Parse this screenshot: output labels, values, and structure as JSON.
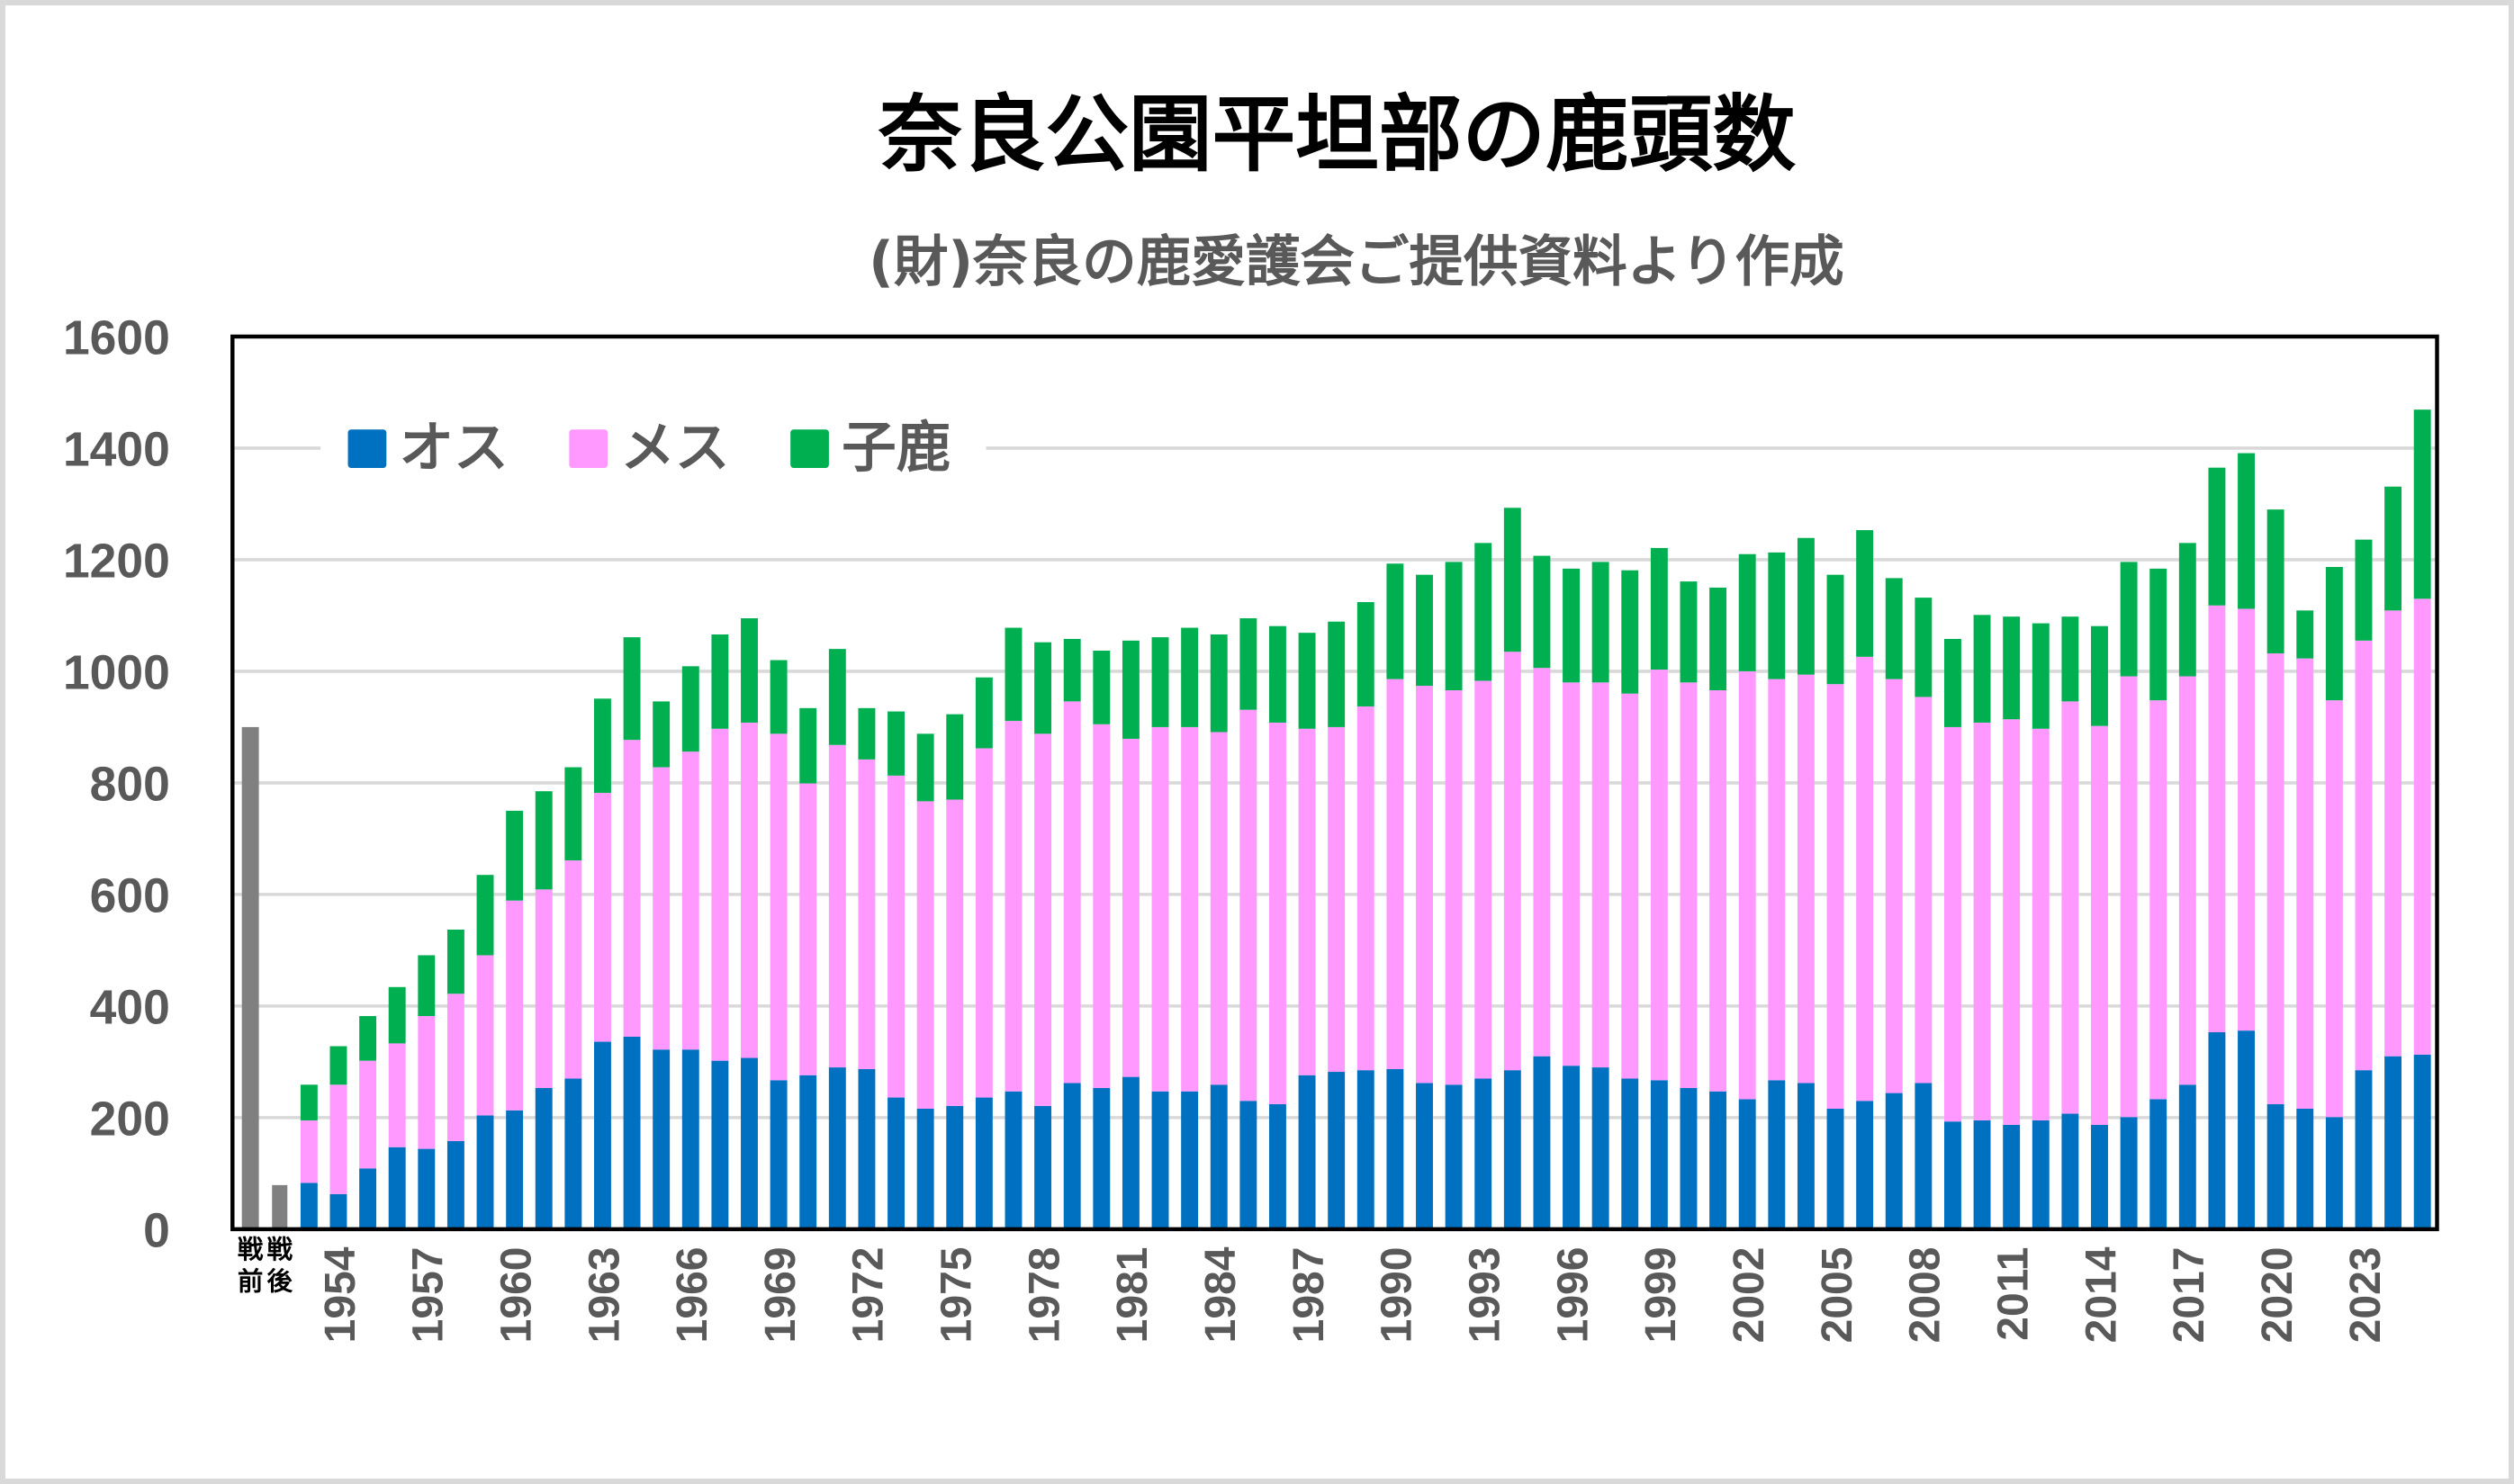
{
  "chart_data": {
    "type": "bar",
    "stacked": true,
    "title": "奈良公園平坦部の鹿頭数",
    "subtitle": "(財)奈良の鹿愛護会ご提供資料より作成",
    "xlabel": "",
    "ylabel": "",
    "ylim": [
      0,
      1600
    ],
    "yticks": [
      "0",
      "200",
      "400",
      "600",
      "800",
      "1000",
      "1200",
      "1400",
      "1600"
    ],
    "grid": true,
    "legend_position": "top-left",
    "colors": {
      "male": "#0070C0",
      "female": "#FF99FF",
      "fawn": "#00B050",
      "total_only": "#808080"
    },
    "legend": [
      {
        "key": "male",
        "label": "オス"
      },
      {
        "key": "female",
        "label": "メス"
      },
      {
        "key": "fawn",
        "label": "子鹿"
      }
    ],
    "pre_war_post_war": [
      {
        "label_top": "戦",
        "label_bottom": "前",
        "total": 900
      },
      {
        "label_top": "戦",
        "label_bottom": "後",
        "total": 79
      }
    ],
    "years": [
      1953,
      1954,
      1955,
      1956,
      1957,
      1958,
      1959,
      1960,
      1961,
      1962,
      1963,
      1964,
      1965,
      1966,
      1967,
      1968,
      1969,
      1970,
      1971,
      1972,
      1973,
      1974,
      1975,
      1976,
      1977,
      1978,
      1979,
      1980,
      1981,
      1982,
      1983,
      1984,
      1985,
      1986,
      1987,
      1988,
      1989,
      1990,
      1991,
      1992,
      1993,
      1994,
      1995,
      1996,
      1997,
      1998,
      1999,
      2000,
      2001,
      2002,
      2003,
      2004,
      2005,
      2006,
      2007,
      2008,
      2009,
      2010,
      2011,
      2012,
      2013,
      2014,
      2015,
      2016,
      2017,
      2018,
      2019,
      2020,
      2021,
      2022,
      2023,
      2024,
      2025
    ],
    "x_tick_labels": [
      "1954",
      "1957",
      "1960",
      "1963",
      "1966",
      "1969",
      "1972",
      "1975",
      "1978",
      "1981",
      "1984",
      "1987",
      "1990",
      "1993",
      "1996",
      "1999",
      "2002",
      "2005",
      "2008",
      "2011",
      "2014",
      "2017",
      "2020",
      "2023"
    ],
    "series": [
      {
        "name": "オス",
        "key": "male",
        "values": [
          83,
          63,
          109,
          147,
          144,
          158,
          204,
          213,
          253,
          270,
          336,
          345,
          322,
          322,
          302,
          307,
          267,
          276,
          290,
          287,
          236,
          216,
          221,
          236,
          247,
          221,
          262,
          253,
          273,
          247,
          247,
          259,
          230,
          224,
          276,
          282,
          285,
          287,
          262,
          259,
          270,
          285,
          310,
          293,
          290,
          270,
          267,
          253,
          247,
          233,
          267,
          262,
          216,
          230,
          244,
          262,
          193,
          195,
          187,
          195,
          207,
          187,
          201,
          233,
          259,
          353,
          356,
          224,
          216,
          201,
          285,
          310,
          313
        ]
      },
      {
        "name": "メス",
        "key": "female",
        "values": [
          112,
          196,
          193,
          186,
          238,
          264,
          287,
          376,
          356,
          391,
          446,
          532,
          506,
          534,
          595,
          601,
          621,
          523,
          578,
          555,
          577,
          551,
          549,
          626,
          664,
          667,
          684,
          652,
          606,
          653,
          653,
          632,
          701,
          684,
          621,
          618,
          652,
          699,
          712,
          707,
          713,
          750,
          696,
          687,
          690,
          690,
          736,
          727,
          719,
          767,
          719,
          732,
          761,
          796,
          742,
          692,
          707,
          713,
          727,
          702,
          739,
          715,
          790,
          715,
          732,
          765,
          756,
          808,
          807,
          747,
          770,
          799,
          817
        ]
      },
      {
        "name": "子鹿",
        "key": "fawn",
        "values": [
          64,
          69,
          80,
          101,
          109,
          115,
          144,
          161,
          176,
          167,
          169,
          184,
          118,
          153,
          169,
          187,
          132,
          135,
          172,
          92,
          115,
          121,
          153,
          127,
          167,
          164,
          112,
          132,
          176,
          161,
          178,
          175,
          164,
          173,
          172,
          189,
          187,
          207,
          199,
          230,
          247,
          258,
          201,
          204,
          216,
          221,
          218,
          181,
          184,
          210,
          227,
          245,
          196,
          227,
          181,
          178,
          158,
          193,
          184,
          189,
          152,
          179,
          205,
          236,
          239,
          247,
          279,
          258,
          86,
          239,
          181,
          222,
          339
        ]
      }
    ]
  }
}
